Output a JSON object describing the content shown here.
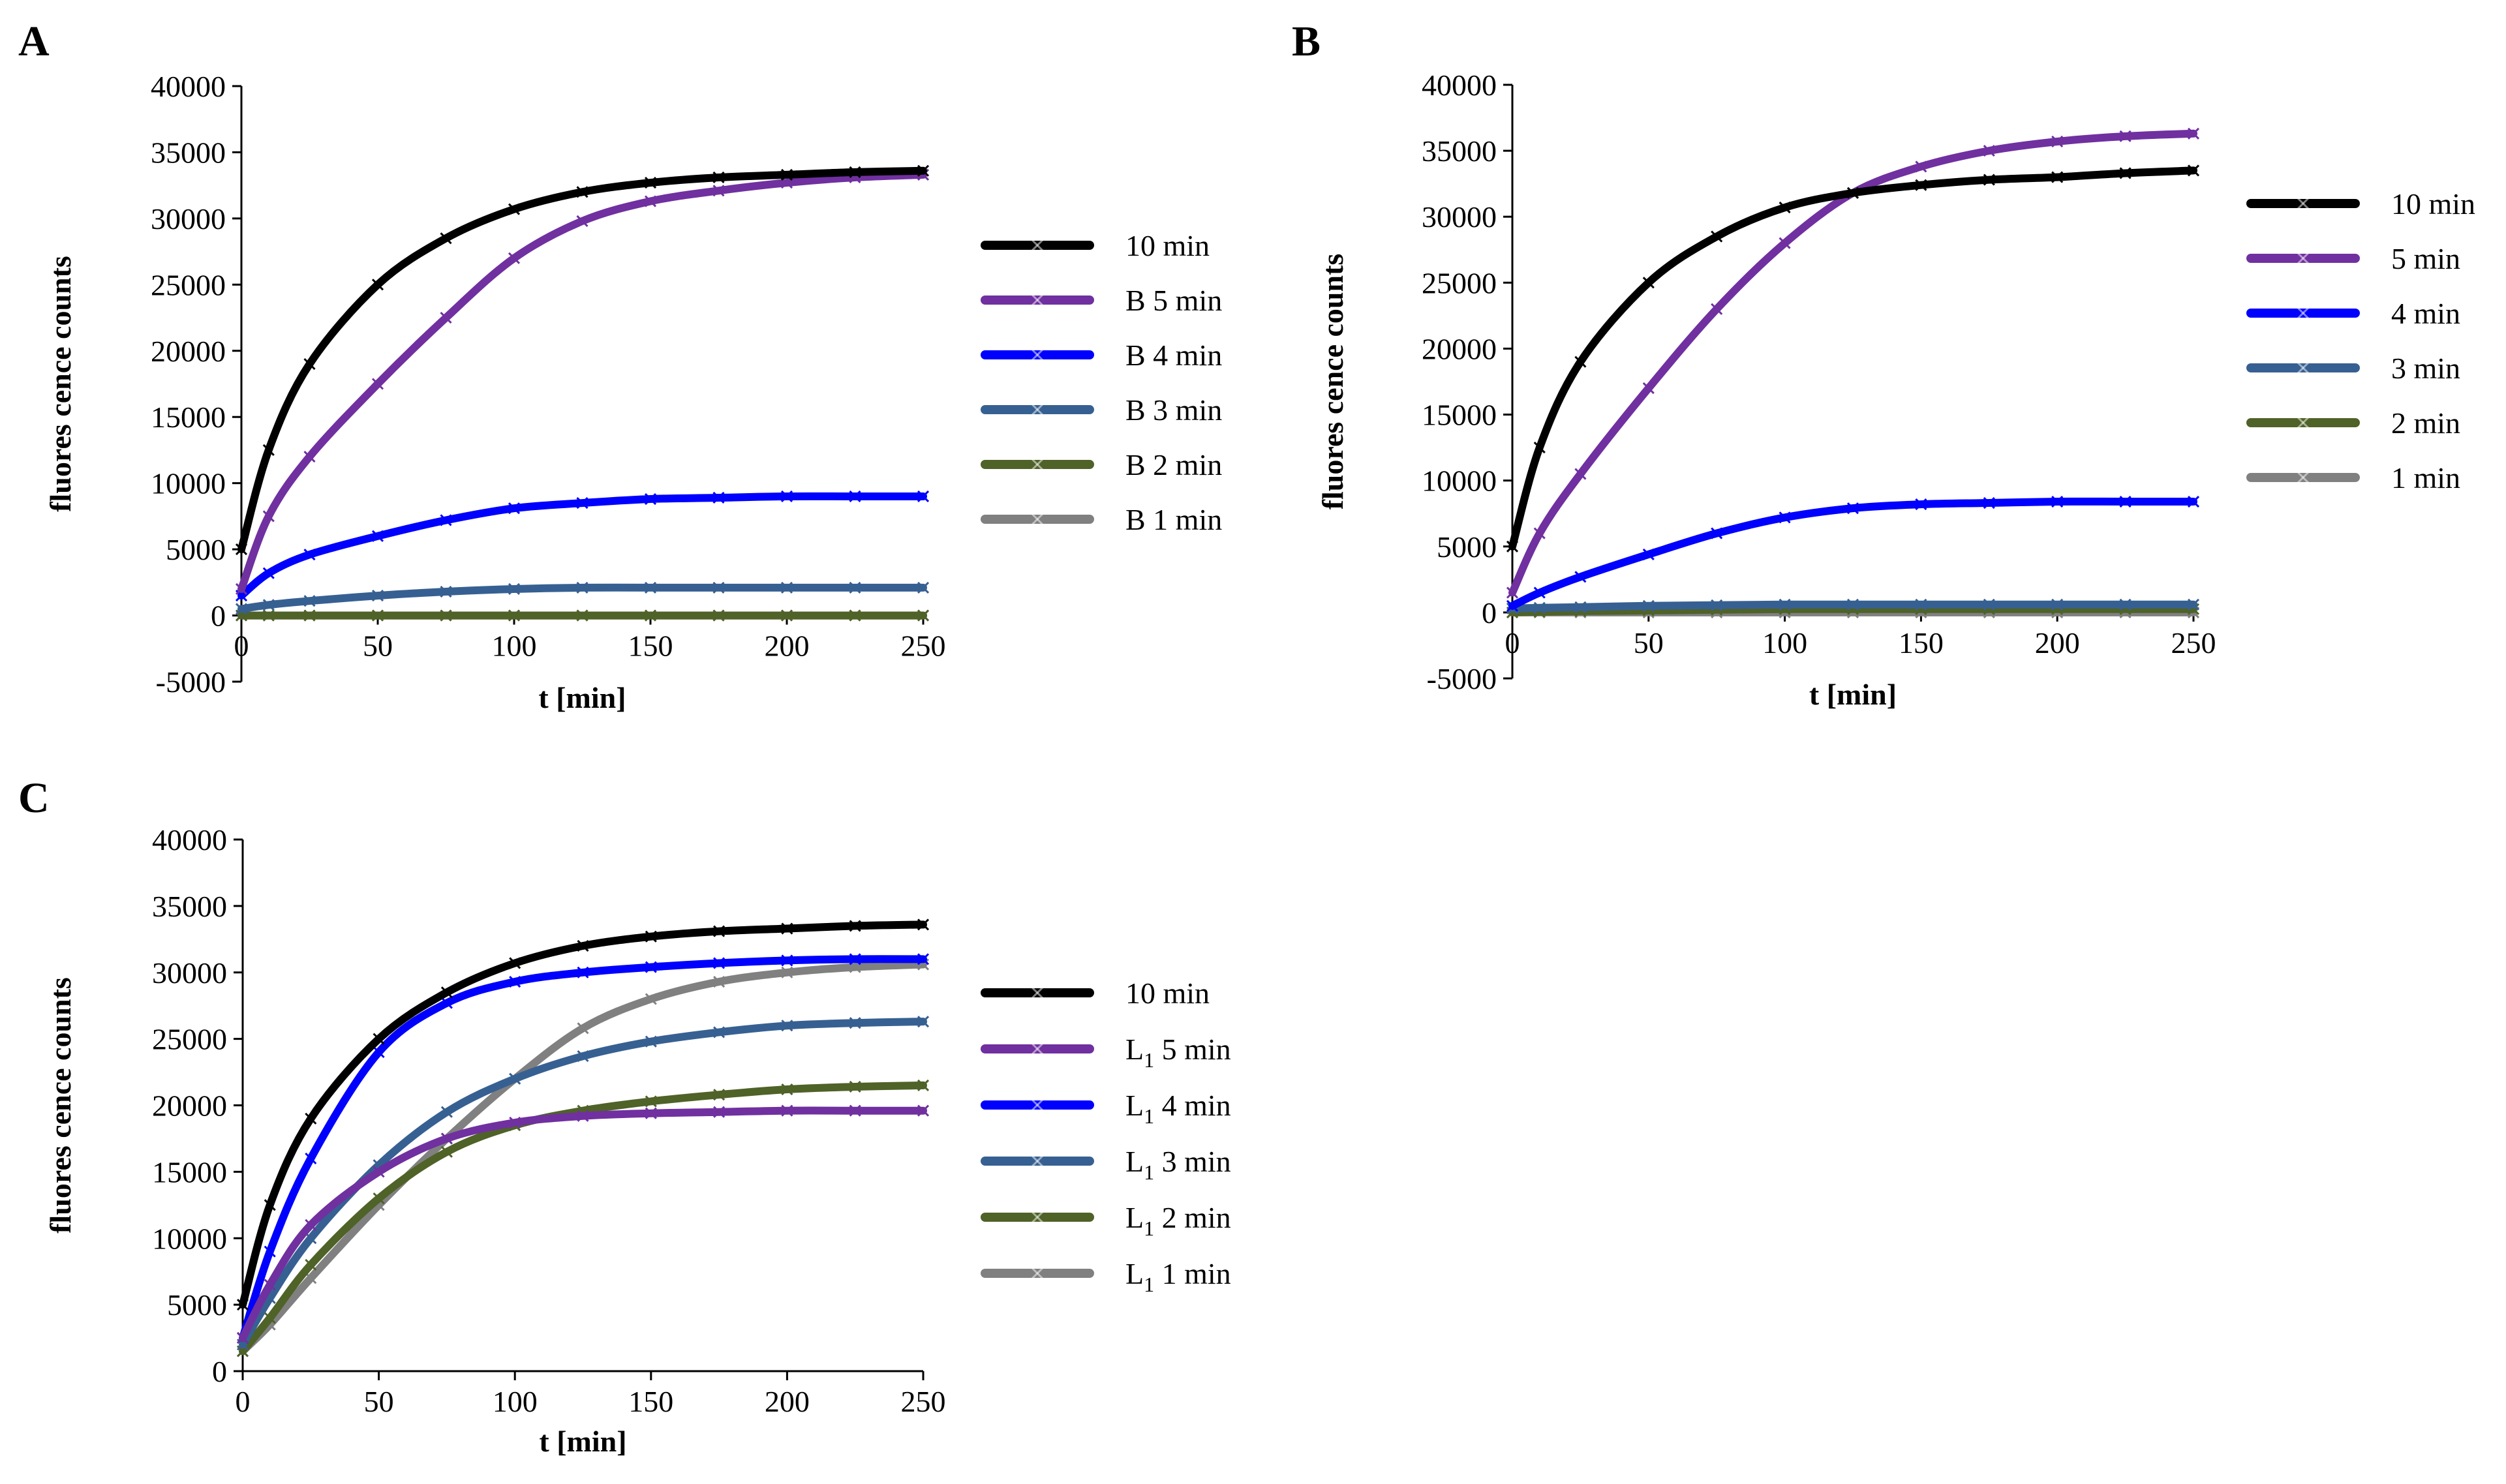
{
  "figure": {
    "panel_labels": [
      "A",
      "B",
      "C"
    ]
  },
  "chart_data": [
    {
      "panel": "A",
      "type": "line",
      "title": "",
      "xlabel": "t [min]",
      "ylabel": "fluores cence counts",
      "xlim": [
        0,
        250
      ],
      "ylim": [
        -5000,
        40000
      ],
      "xticks": [
        0,
        50,
        100,
        150,
        200,
        250
      ],
      "yticks": [
        -5000,
        0,
        5000,
        10000,
        15000,
        20000,
        25000,
        30000,
        35000,
        40000
      ],
      "legend_position": "right",
      "x": [
        0,
        10,
        25,
        50,
        75,
        100,
        125,
        150,
        175,
        200,
        225,
        250
      ],
      "series": [
        {
          "name": "10 min",
          "color": "#000000",
          "values": [
            5000,
            12500,
            19000,
            25000,
            28500,
            30700,
            32000,
            32700,
            33100,
            33300,
            33500,
            33600
          ]
        },
        {
          "name": "B 5 min",
          "color": "#7030A0",
          "values": [
            2000,
            7500,
            12000,
            17500,
            22500,
            27000,
            29800,
            31300,
            32100,
            32700,
            33100,
            33300
          ]
        },
        {
          "name": "B 4 min",
          "color": "#0000FF",
          "values": [
            1500,
            3200,
            4600,
            6000,
            7200,
            8100,
            8500,
            8800,
            8900,
            9000,
            9000,
            9000
          ]
        },
        {
          "name": "B 3 min",
          "color": "#376092",
          "values": [
            500,
            800,
            1100,
            1500,
            1800,
            2000,
            2100,
            2100,
            2100,
            2100,
            2100,
            2100
          ]
        },
        {
          "name": "B 2 min",
          "color": "#4F6228",
          "values": [
            0,
            0,
            0,
            0,
            0,
            0,
            0,
            0,
            0,
            0,
            0,
            0
          ]
        },
        {
          "name": "B 1 min",
          "color": "#808080",
          "values": [
            0,
            0,
            0,
            0,
            0,
            0,
            0,
            0,
            0,
            0,
            0,
            0
          ]
        }
      ]
    },
    {
      "panel": "B",
      "type": "line",
      "title": "",
      "xlabel": "t [min]",
      "ylabel": "fluores cence counts",
      "xlim": [
        0,
        250
      ],
      "ylim": [
        -5000,
        40000
      ],
      "xticks": [
        0,
        50,
        100,
        150,
        200,
        250
      ],
      "yticks": [
        -5000,
        0,
        5000,
        10000,
        15000,
        20000,
        25000,
        30000,
        35000,
        40000
      ],
      "legend_position": "right",
      "x": [
        0,
        10,
        25,
        50,
        75,
        100,
        125,
        150,
        175,
        200,
        225,
        250
      ],
      "series": [
        {
          "name": "10 min",
          "color": "#000000",
          "values": [
            5000,
            12500,
            19000,
            25000,
            28500,
            30700,
            31800,
            32400,
            32800,
            33000,
            33300,
            33500
          ]
        },
        {
          "name": "5 min",
          "color": "#7030A0",
          "values": [
            1500,
            6000,
            10500,
            17000,
            23000,
            28000,
            31800,
            33800,
            35000,
            35700,
            36100,
            36300
          ]
        },
        {
          "name": "4 min",
          "color": "#0000FF",
          "values": [
            500,
            1500,
            2700,
            4400,
            6000,
            7200,
            7900,
            8200,
            8300,
            8400,
            8400,
            8400
          ]
        },
        {
          "name": "3 min",
          "color": "#376092",
          "values": [
            300,
            350,
            400,
            500,
            550,
            600,
            600,
            600,
            600,
            600,
            600,
            600
          ]
        },
        {
          "name": "2 min",
          "color": "#4F6228",
          "values": [
            0,
            50,
            100,
            150,
            200,
            250,
            250,
            250,
            250,
            250,
            250,
            250
          ]
        },
        {
          "name": "1 min",
          "color": "#808080",
          "values": [
            0,
            0,
            0,
            0,
            0,
            0,
            0,
            0,
            0,
            0,
            0,
            0
          ]
        }
      ]
    },
    {
      "panel": "C",
      "type": "line",
      "title": "",
      "xlabel": "t [min]",
      "ylabel": "fluores cence counts",
      "xlim": [
        0,
        250
      ],
      "ylim": [
        0,
        40000
      ],
      "xticks": [
        0,
        50,
        100,
        150,
        200,
        250
      ],
      "yticks": [
        0,
        5000,
        10000,
        15000,
        20000,
        25000,
        30000,
        35000,
        40000
      ],
      "legend_position": "right",
      "x": [
        0,
        10,
        25,
        50,
        75,
        100,
        125,
        150,
        175,
        200,
        225,
        250
      ],
      "series": [
        {
          "name": "10 min",
          "color": "#000000",
          "values": [
            5000,
            12500,
            19000,
            25000,
            28500,
            30700,
            32000,
            32700,
            33100,
            33300,
            33500,
            33600
          ]
        },
        {
          "name": "L",
          "sub": "1",
          "suffix": " 5 min",
          "color": "#7030A0",
          "values": [
            2500,
            6500,
            11000,
            15000,
            17500,
            18700,
            19200,
            19400,
            19500,
            19600,
            19600,
            19600
          ]
        },
        {
          "name": "L",
          "sub": "1",
          "suffix": " 4 min",
          "color": "#0000FF",
          "values": [
            2500,
            9000,
            16000,
            24000,
            27700,
            29300,
            30000,
            30400,
            30700,
            30900,
            31000,
            31000
          ]
        },
        {
          "name": "L",
          "sub": "1",
          "suffix": " 3 min",
          "color": "#376092",
          "values": [
            2000,
            5500,
            10000,
            15500,
            19500,
            22000,
            23700,
            24800,
            25500,
            26000,
            26200,
            26300
          ]
        },
        {
          "name": "L",
          "sub": "1",
          "suffix": " 2 min",
          "color": "#4F6228",
          "values": [
            1500,
            4000,
            8000,
            13000,
            16500,
            18500,
            19600,
            20300,
            20800,
            21200,
            21400,
            21500
          ]
        },
        {
          "name": "L",
          "sub": "1",
          "suffix": " 1 min",
          "color": "#808080",
          "values": [
            1500,
            3500,
            7000,
            12500,
            17500,
            22000,
            25800,
            28000,
            29300,
            30000,
            30400,
            30600
          ]
        }
      ]
    }
  ]
}
